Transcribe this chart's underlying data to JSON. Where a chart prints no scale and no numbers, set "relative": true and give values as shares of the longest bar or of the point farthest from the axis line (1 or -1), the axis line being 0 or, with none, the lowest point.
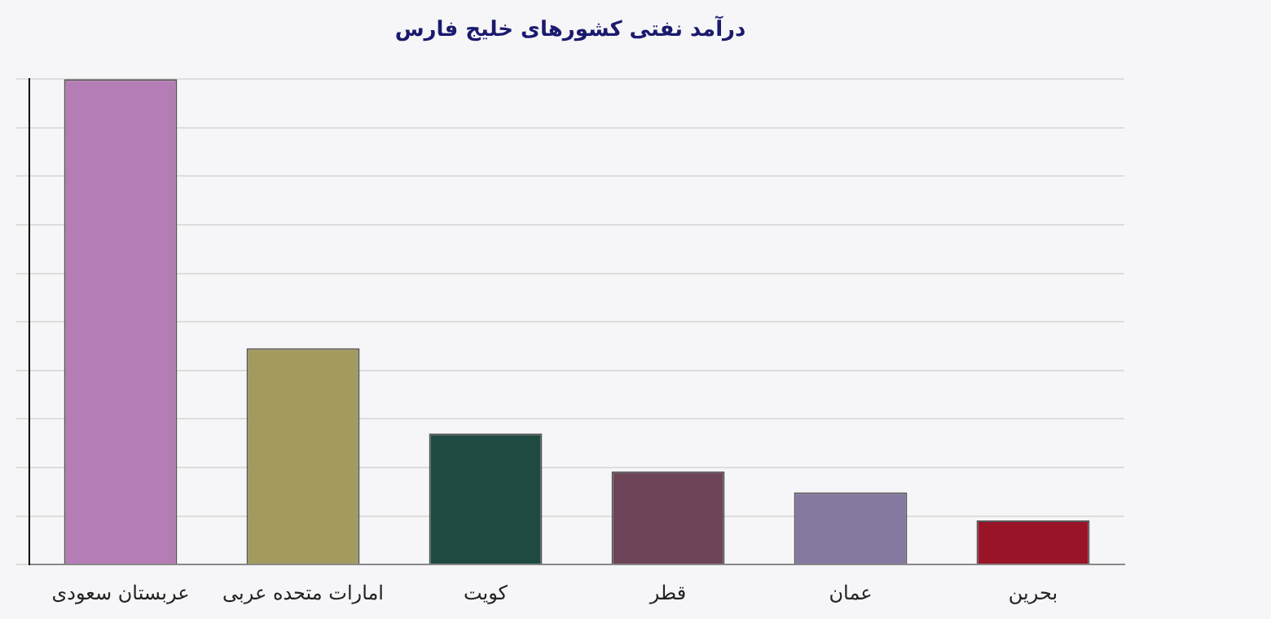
{
  "chart_data": {
    "type": "bar",
    "title": "درآمد نفتی کشورهای خلیج فارس",
    "categories": [
      "عربستان سعودی",
      "امارات متحده عربی",
      "کویت",
      "قطر",
      "عمان",
      "بحرین"
    ],
    "values": [
      1,
      0.446,
      0.27,
      0.192,
      0.149,
      0.091
    ],
    "colors": [
      "#b57db5",
      "#a39a60",
      "#1f4a42",
      "#6e4558",
      "#8679a0",
      "#9a1428"
    ],
    "relative": true,
    "grid": "y",
    "legend": false
  }
}
